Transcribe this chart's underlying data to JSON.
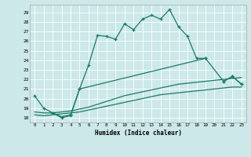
{
  "xlabel": "Humidex (Indice chaleur)",
  "background_color": "#cce8e8",
  "grid_color": "#ffffff",
  "line_color": "#1a7a6a",
  "xlim": [
    -0.5,
    23.5
  ],
  "ylim": [
    17.5,
    29.8
  ],
  "xtick_vals": [
    0,
    1,
    2,
    3,
    4,
    5,
    6,
    7,
    8,
    9,
    10,
    11,
    12,
    13,
    14,
    15,
    16,
    17,
    18,
    19,
    20,
    21,
    22,
    23
  ],
  "xtick_labels": [
    "0",
    "1",
    "2",
    "3",
    "4",
    "5",
    "6",
    "7",
    "8",
    "9",
    "10",
    "11",
    "12",
    "13",
    "14",
    "15",
    "16",
    "17",
    "18",
    "19",
    "20",
    "21",
    "22",
    "23"
  ],
  "ytick_vals": [
    18,
    19,
    20,
    21,
    22,
    23,
    24,
    25,
    26,
    27,
    28,
    29
  ],
  "ytick_labels": [
    "18",
    "19",
    "20",
    "21",
    "22",
    "23",
    "24",
    "25",
    "26",
    "27",
    "28",
    "29"
  ],
  "line_main": {
    "x": [
      0,
      1,
      2,
      3,
      4,
      5,
      6,
      7,
      8,
      9,
      10,
      11,
      12,
      13,
      14,
      15,
      16,
      17,
      18,
      19
    ],
    "y": [
      20.3,
      19.0,
      18.5,
      18.0,
      18.2,
      21.0,
      23.5,
      26.6,
      26.5,
      26.2,
      27.8,
      27.2,
      28.3,
      28.7,
      28.3,
      29.3,
      27.5,
      26.5,
      24.2,
      24.2
    ]
  },
  "line_right": {
    "x": [
      21,
      22,
      23
    ],
    "y": [
      21.8,
      22.3,
      21.5
    ]
  },
  "line_flat1": {
    "x": [
      0,
      1,
      2,
      3,
      4,
      5,
      6,
      7,
      8,
      9,
      10,
      11,
      12,
      13,
      14,
      15,
      16,
      17,
      18,
      19,
      20,
      21,
      22,
      23
    ],
    "y": [
      18.6,
      18.5,
      18.5,
      18.6,
      18.7,
      18.9,
      19.1,
      19.4,
      19.7,
      20.0,
      20.3,
      20.5,
      20.7,
      20.9,
      21.1,
      21.3,
      21.5,
      21.6,
      21.7,
      21.8,
      21.9,
      22.0,
      22.1,
      22.2
    ]
  },
  "line_flat2": {
    "x": [
      0,
      1,
      2,
      3,
      4,
      5,
      6,
      7,
      8,
      9,
      10,
      11,
      12,
      13,
      14,
      15,
      16,
      17,
      18,
      19,
      20,
      21,
      22,
      23
    ],
    "y": [
      18.3,
      18.2,
      18.3,
      18.4,
      18.5,
      18.6,
      18.8,
      19.0,
      19.2,
      19.4,
      19.6,
      19.8,
      20.0,
      20.2,
      20.4,
      20.5,
      20.6,
      20.7,
      20.8,
      20.9,
      21.0,
      21.1,
      21.2,
      21.2
    ]
  },
  "line_triangle": {
    "x": [
      2,
      3,
      4,
      5,
      19,
      21,
      22,
      23
    ],
    "y": [
      18.5,
      18.1,
      18.3,
      21.0,
      24.2,
      21.8,
      22.3,
      21.5
    ]
  }
}
